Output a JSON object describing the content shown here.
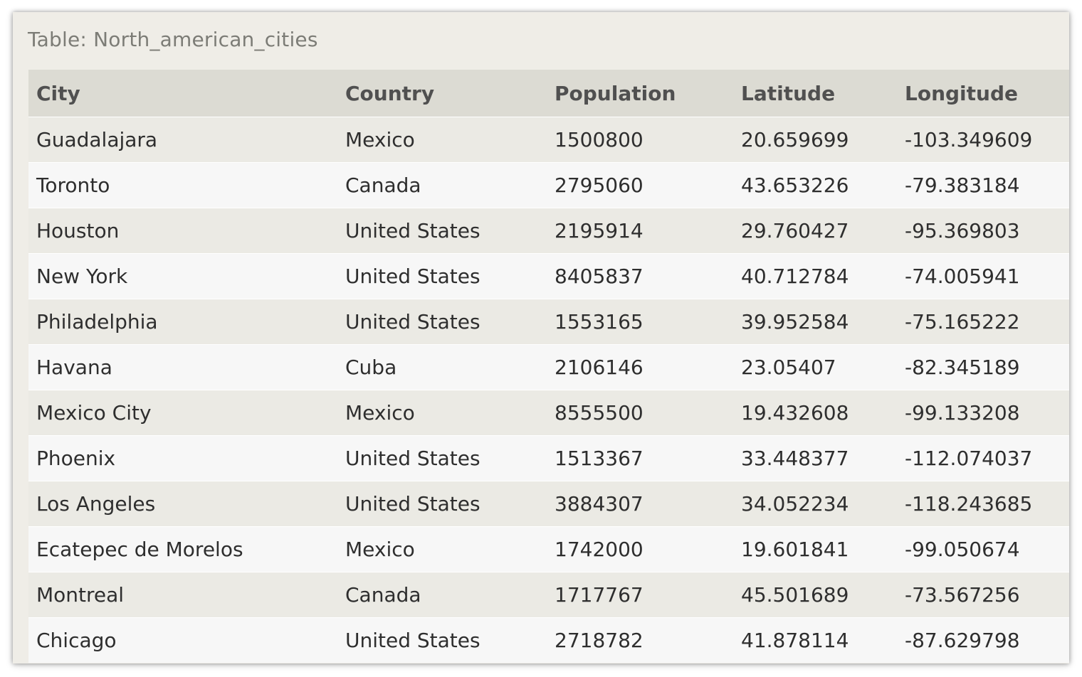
{
  "table": {
    "caption": "Table: North_american_cities",
    "headers": [
      "City",
      "Country",
      "Population",
      "Latitude",
      "Longitude"
    ],
    "rows": [
      [
        "Guadalajara",
        "Mexico",
        "1500800",
        "20.659699",
        "-103.349609"
      ],
      [
        "Toronto",
        "Canada",
        "2795060",
        "43.653226",
        "-79.383184"
      ],
      [
        "Houston",
        "United States",
        "2195914",
        "29.760427",
        "-95.369803"
      ],
      [
        "New York",
        "United States",
        "8405837",
        "40.712784",
        "-74.005941"
      ],
      [
        "Philadelphia",
        "United States",
        "1553165",
        "39.952584",
        "-75.165222"
      ],
      [
        "Havana",
        "Cuba",
        "2106146",
        "23.05407",
        "-82.345189"
      ],
      [
        "Mexico City",
        "Mexico",
        "8555500",
        "19.432608",
        "-99.133208"
      ],
      [
        "Phoenix",
        "United States",
        "1513367",
        "33.448377",
        "-112.074037"
      ],
      [
        "Los Angeles",
        "United States",
        "3884307",
        "34.052234",
        "-118.243685"
      ],
      [
        "Ecatepec de Morelos",
        "Mexico",
        "1742000",
        "19.601841",
        "-99.050674"
      ],
      [
        "Montreal",
        "Canada",
        "1717767",
        "45.501689",
        "-73.567256"
      ],
      [
        "Chicago",
        "United States",
        "2718782",
        "41.878114",
        "-87.629798"
      ]
    ]
  }
}
